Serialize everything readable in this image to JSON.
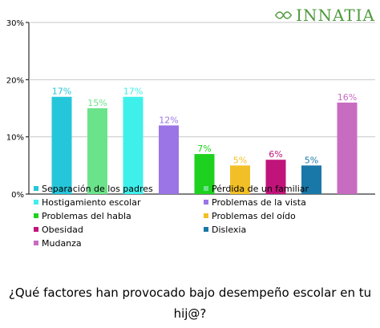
{
  "brand": {
    "name": "INNATIA",
    "color": "#4f9a3c"
  },
  "question": "¿Qué factores han provocado bajo desempeño escolar en tu hij@?",
  "chart_data": {
    "type": "bar",
    "title": "",
    "xlabel": "",
    "ylabel": "",
    "ylim": [
      0,
      30
    ],
    "yticks": [
      "0%",
      "10%",
      "20%",
      "30%"
    ],
    "grid": true,
    "legend_position": "bottom",
    "series": [
      {
        "name": "Separación de los padres",
        "value": 17,
        "label": "17%",
        "color": "#26c6da"
      },
      {
        "name": "Pérdida de un familiar",
        "value": 15,
        "label": "15%",
        "color": "#6be38a"
      },
      {
        "name": "Hostigamiento escolar",
        "value": 17,
        "label": "17%",
        "color": "#3ff0ea"
      },
      {
        "name": "Problemas de la vista",
        "value": 12,
        "label": "12%",
        "color": "#9b74e6"
      },
      {
        "name": "Problemas del habla",
        "value": 7,
        "label": "7%",
        "color": "#1fd11f"
      },
      {
        "name": "Problemas del oído",
        "value": 5,
        "label": "5%",
        "color": "#f2c026"
      },
      {
        "name": "Obesidad",
        "value": 6,
        "label": "6%",
        "color": "#c0147a"
      },
      {
        "name": "Dislexia",
        "value": 5,
        "label": "5%",
        "color": "#1a78a8"
      },
      {
        "name": "Mudanza",
        "value": 16,
        "label": "16%",
        "color": "#c86cc1"
      }
    ]
  }
}
